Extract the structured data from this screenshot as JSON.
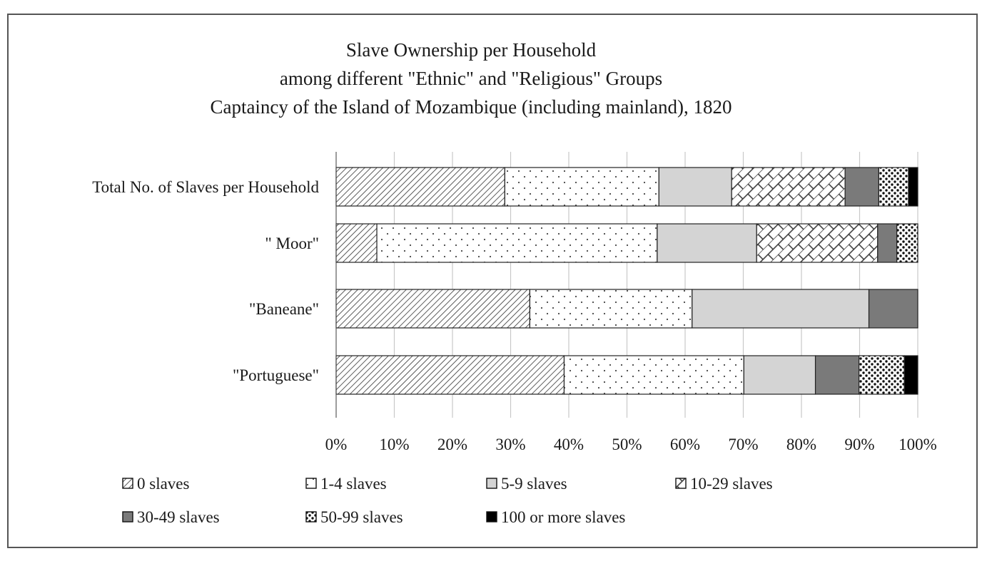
{
  "chart_data": {
    "type": "bar",
    "orientation": "horizontal",
    "stacked": "percent",
    "title": [
      "Slave Ownership per Household",
      "among different \"Ethnic\" and \"Religious\" Groups",
      "Captaincy of the Island of Mozambique (including mainland), 1820"
    ],
    "xlabel": "",
    "ylabel": "",
    "xlim": [
      0,
      100
    ],
    "x_tick_labels": [
      "0%",
      "10%",
      "20%",
      "30%",
      "40%",
      "50%",
      "60%",
      "70%",
      "80%",
      "90%",
      "100%"
    ],
    "grid": true,
    "legend_position": "bottom",
    "categories": [
      "Total No. of Slaves per Household",
      "\" Moor\"",
      "\"Baneane\"",
      "\"Portuguese\""
    ],
    "series": [
      {
        "name": "0 slaves",
        "pattern": "diag-dense",
        "values": [
          29,
          7,
          33.3,
          39.2
        ]
      },
      {
        "name": "1-4 slaves",
        "pattern": "dots",
        "values": [
          26.5,
          48.2,
          27.9,
          30.9
        ]
      },
      {
        "name": "5-9 slaves",
        "pattern": "light-gray",
        "values": [
          12.5,
          17.1,
          30.4,
          12.3
        ]
      },
      {
        "name": "10-29 slaves",
        "pattern": "brick-hatch",
        "values": [
          19.5,
          20.8,
          0,
          0
        ]
      },
      {
        "name": "30-49 slaves",
        "pattern": "dark-gray",
        "values": [
          5.8,
          3.3,
          8.4,
          7.5
        ]
      },
      {
        "name": "50-99 slaves",
        "pattern": "dense-dots",
        "values": [
          5.1,
          3.6,
          0,
          7.8
        ]
      },
      {
        "name": "100 or more slaves",
        "pattern": "solid-black",
        "values": [
          1.6,
          0,
          0,
          2.3
        ]
      }
    ],
    "colors": {
      "light_gray": "#d4d4d4",
      "dark_gray": "#7a7a7a",
      "black": "#000000",
      "gridline": "#c8c8c8",
      "border": "#555555"
    }
  }
}
